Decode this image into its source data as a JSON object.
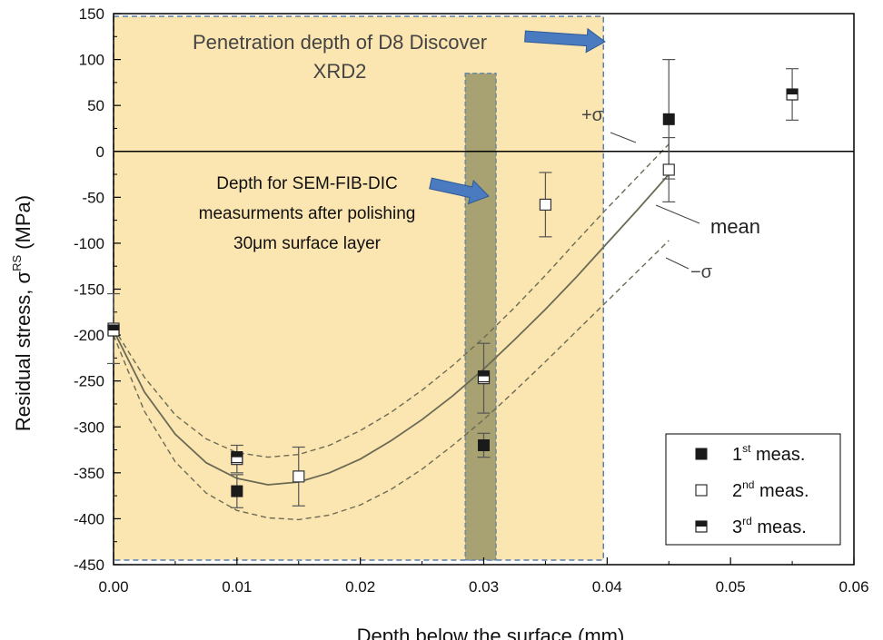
{
  "chart_data": {
    "type": "scatter",
    "title": "",
    "xlabel": "Depth below the surface (mm)",
    "ylabel_main": "Residual stress, σ",
    "ylabel_sup": "RS",
    "ylabel_unit": "(MPa)",
    "xlim": [
      0,
      0.06
    ],
    "ylim": [
      -450,
      150
    ],
    "x_ticks": [
      {
        "value": 0,
        "label": "0.00"
      },
      {
        "value": 0.01,
        "label": "0.01"
      },
      {
        "value": 0.02,
        "label": "0.02"
      },
      {
        "value": 0.03,
        "label": "0.03"
      },
      {
        "value": 0.04,
        "label": "0.04"
      },
      {
        "value": 0.05,
        "label": "0.05"
      },
      {
        "value": 0.06,
        "label": "0.06"
      }
    ],
    "y_ticks": [
      {
        "value": 150,
        "label": "150"
      },
      {
        "value": 100,
        "label": "100"
      },
      {
        "value": 50,
        "label": "50"
      },
      {
        "value": 0,
        "label": "0"
      },
      {
        "value": -50,
        "label": "-50"
      },
      {
        "value": -100,
        "label": "-100"
      },
      {
        "value": -150,
        "label": "-150"
      },
      {
        "value": -200,
        "label": "-200"
      },
      {
        "value": -250,
        "label": "-250"
      },
      {
        "value": -300,
        "label": "-300"
      },
      {
        "value": -350,
        "label": "-350"
      },
      {
        "value": -400,
        "label": "-400"
      },
      {
        "value": -450,
        "label": "-450"
      }
    ],
    "grid": false,
    "legend_position": "bottom-right",
    "colors": {
      "penetration_fill": "#fbe5b0",
      "penetration_border": "#5a7fb0",
      "sem_band_fill": "#a8a172",
      "sem_band_border": "#5a7fb0",
      "arrow": "#4a7bc0",
      "curve": "#6b6b55",
      "marker_dark": "#1a1a1a",
      "zero_line": "#000000"
    },
    "regions": {
      "penetration_depth": {
        "x": [
          0,
          0.0397
        ],
        "y": [
          -445,
          147
        ]
      },
      "sem_fib_dic": {
        "x": [
          0.0285,
          0.031
        ],
        "y": [
          -445,
          85
        ]
      }
    },
    "series": [
      {
        "name": "1st meas.",
        "legend_base": "1",
        "legend_sup": "st",
        "legend_tail": " meas.",
        "marker": "filled-square",
        "points": [
          {
            "x": 0.01,
            "y": -370,
            "err": 18
          },
          {
            "x": 0.03,
            "y": -320,
            "err": 13
          },
          {
            "x": 0.045,
            "y": 35,
            "err": 65
          }
        ]
      },
      {
        "name": "2nd meas.",
        "legend_base": "2",
        "legend_sup": "nd",
        "legend_tail": " meas.",
        "marker": "open-square",
        "points": [
          {
            "x": 0.0,
            "y": -193,
            "err": 38
          },
          {
            "x": 0.01,
            "y": -335,
            "err": 15
          },
          {
            "x": 0.015,
            "y": -354,
            "err": 32
          },
          {
            "x": 0.03,
            "y": -247,
            "err": 38
          },
          {
            "x": 0.035,
            "y": -58,
            "err": 35
          },
          {
            "x": 0.045,
            "y": -20,
            "err": 35
          }
        ]
      },
      {
        "name": "3rd meas.",
        "legend_base": "3",
        "legend_sup": "rd",
        "legend_tail": " meas.",
        "marker": "half-square",
        "points": [
          {
            "x": 0.0,
            "y": -195,
            "err": 0
          },
          {
            "x": 0.01,
            "y": -333,
            "err": 0
          },
          {
            "x": 0.03,
            "y": -245,
            "err": 0
          },
          {
            "x": 0.055,
            "y": 62,
            "err": 28
          }
        ]
      }
    ],
    "curves": {
      "mean": [
        [
          0,
          -195
        ],
        [
          0.0025,
          -262
        ],
        [
          0.005,
          -308
        ],
        [
          0.0075,
          -339
        ],
        [
          0.01,
          -356
        ],
        [
          0.0125,
          -363
        ],
        [
          0.015,
          -360
        ],
        [
          0.0175,
          -350
        ],
        [
          0.02,
          -335
        ],
        [
          0.0225,
          -315
        ],
        [
          0.025,
          -292
        ],
        [
          0.0275,
          -266
        ],
        [
          0.03,
          -237
        ],
        [
          0.0325,
          -205
        ],
        [
          0.035,
          -172
        ],
        [
          0.0375,
          -137
        ],
        [
          0.04,
          -100
        ],
        [
          0.0425,
          -63
        ],
        [
          0.045,
          -25
        ]
      ],
      "plus_sigma": [
        [
          0,
          -192
        ],
        [
          0.0025,
          -246
        ],
        [
          0.005,
          -287
        ],
        [
          0.0075,
          -313
        ],
        [
          0.01,
          -328
        ],
        [
          0.0125,
          -333
        ],
        [
          0.015,
          -330
        ],
        [
          0.0175,
          -320
        ],
        [
          0.02,
          -304
        ],
        [
          0.0225,
          -284
        ],
        [
          0.025,
          -260
        ],
        [
          0.0275,
          -233
        ],
        [
          0.03,
          -203
        ],
        [
          0.0325,
          -170
        ],
        [
          0.035,
          -135
        ],
        [
          0.0375,
          -98
        ],
        [
          0.04,
          -62
        ],
        [
          0.0425,
          -27
        ],
        [
          0.045,
          8
        ]
      ],
      "minus_sigma": [
        [
          0,
          -200
        ],
        [
          0.0025,
          -283
        ],
        [
          0.005,
          -338
        ],
        [
          0.0075,
          -372
        ],
        [
          0.01,
          -391
        ],
        [
          0.0125,
          -399
        ],
        [
          0.015,
          -401
        ],
        [
          0.0175,
          -396
        ],
        [
          0.02,
          -385
        ],
        [
          0.0225,
          -368
        ],
        [
          0.025,
          -346
        ],
        [
          0.0275,
          -320
        ],
        [
          0.03,
          -292
        ],
        [
          0.0325,
          -261
        ],
        [
          0.035,
          -229
        ],
        [
          0.0375,
          -196
        ],
        [
          0.04,
          -163
        ],
        [
          0.0425,
          -130
        ],
        [
          0.045,
          -97
        ]
      ]
    },
    "annotations": {
      "penetration_line1": "Penetration depth of D8 Discover",
      "penetration_line2": "XRD2",
      "sem_line1": "Depth for SEM-FIB-DIC",
      "sem_line2": "measurments after polishing",
      "sem_line3": "30μm surface layer",
      "plus_sigma": "+σ",
      "mean": "mean",
      "minus_sigma": "−σ"
    }
  }
}
